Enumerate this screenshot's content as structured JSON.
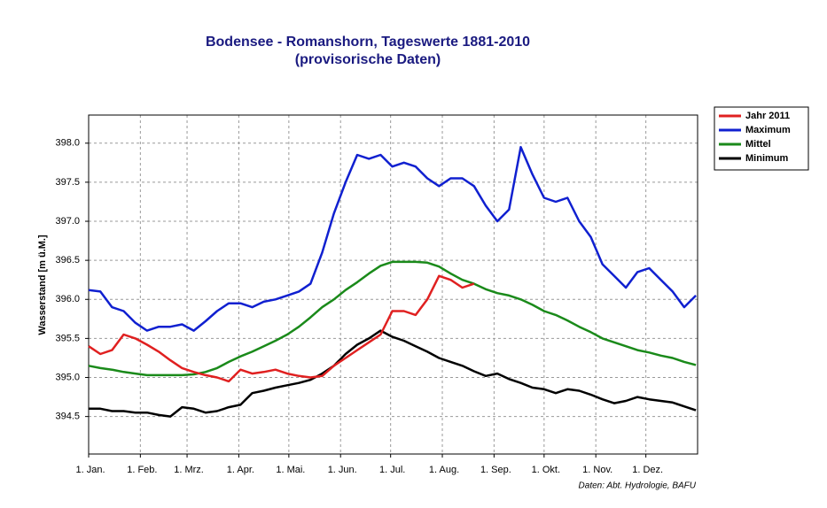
{
  "chart_data": {
    "type": "line",
    "title": "Bodensee - Romanshorn, Tageswerte 1881-2010",
    "subtitle": "(provisorische Daten)",
    "y_label": "Wasserstand [m ü.M.]",
    "source": "Daten: Abt. Hydrologie, BAFU",
    "x": [
      1,
      8,
      15,
      22,
      29,
      36,
      43,
      50,
      57,
      64,
      71,
      78,
      85,
      92,
      99,
      106,
      113,
      120,
      127,
      134,
      141,
      148,
      155,
      162,
      169,
      176,
      183,
      190,
      197,
      204,
      211,
      218,
      225,
      232,
      239,
      246,
      253,
      260,
      267,
      274,
      281,
      288,
      295,
      302,
      309,
      316,
      323,
      330,
      337,
      344,
      351,
      358,
      365
    ],
    "xlim": [
      1,
      366
    ],
    "xticks": [
      {
        "value": 1,
        "label": "1. Jan."
      },
      {
        "value": 32,
        "label": "1. Feb."
      },
      {
        "value": 60,
        "label": "1. Mrz."
      },
      {
        "value": 91,
        "label": "1. Apr."
      },
      {
        "value": 121,
        "label": "1. Mai."
      },
      {
        "value": 152,
        "label": "1. Jun."
      },
      {
        "value": 182,
        "label": "1. Jul."
      },
      {
        "value": 213,
        "label": "1. Aug."
      },
      {
        "value": 244,
        "label": "1. Sep."
      },
      {
        "value": 274,
        "label": "1. Okt."
      },
      {
        "value": 305,
        "label": "1. Nov."
      },
      {
        "value": 335,
        "label": "1. Dez."
      }
    ],
    "ylim": [
      394.02,
      398.36
    ],
    "yticks": [
      394.5,
      {
        "value": 395,
        "label": "395.0"
      },
      395.5,
      {
        "value": 396,
        "label": "396.0"
      },
      396.5,
      {
        "value": 397,
        "label": "397.0"
      },
      397.5,
      {
        "value": 398,
        "label": "398.0"
      }
    ],
    "grid": true,
    "legend": "right",
    "series": [
      {
        "name": "Jahr 2011",
        "color": "#e02020",
        "values": [
          395.4,
          395.3,
          395.35,
          395.55,
          395.5,
          395.42,
          395.33,
          395.22,
          395.12,
          395.07,
          395.03,
          395.0,
          394.95,
          395.1,
          395.05,
          395.07,
          395.1,
          395.05,
          395.02,
          395.0,
          395.02,
          395.15,
          395.25,
          395.35,
          395.45,
          395.55,
          395.85,
          395.85,
          395.8,
          396.0,
          396.3,
          396.25,
          396.15,
          396.2,
          null,
          null,
          null,
          null,
          null,
          null,
          null,
          null,
          null,
          null,
          null,
          null,
          null,
          null,
          null,
          null,
          null,
          null,
          null
        ]
      },
      {
        "name": "Maximum",
        "color": "#1020d0",
        "values": [
          396.12,
          396.1,
          395.9,
          395.85,
          395.7,
          395.6,
          395.65,
          395.65,
          395.68,
          395.6,
          395.72,
          395.85,
          395.95,
          395.95,
          395.9,
          395.97,
          396.0,
          396.05,
          396.1,
          396.2,
          396.6,
          397.1,
          397.5,
          397.85,
          397.8,
          397.85,
          397.7,
          397.75,
          397.7,
          397.55,
          397.45,
          397.55,
          397.55,
          397.45,
          397.2,
          397.0,
          397.15,
          397.95,
          397.6,
          397.3,
          397.25,
          397.3,
          397.0,
          396.8,
          396.45,
          396.3,
          396.15,
          396.35,
          396.4,
          396.25,
          396.1,
          395.9,
          396.05
        ]
      },
      {
        "name": "Mittel",
        "color": "#1a8a1a",
        "values": [
          395.15,
          395.12,
          395.1,
          395.07,
          395.05,
          395.03,
          395.03,
          395.03,
          395.03,
          395.04,
          395.07,
          395.12,
          395.2,
          395.27,
          395.33,
          395.4,
          395.47,
          395.55,
          395.65,
          395.77,
          395.9,
          396.0,
          396.12,
          396.22,
          396.33,
          396.43,
          396.48,
          396.48,
          396.48,
          396.47,
          396.42,
          396.33,
          396.25,
          396.2,
          396.13,
          396.08,
          396.05,
          396.0,
          395.93,
          395.85,
          395.8,
          395.73,
          395.65,
          395.58,
          395.5,
          395.45,
          395.4,
          395.35,
          395.32,
          395.28,
          395.25,
          395.2,
          395.16
        ]
      },
      {
        "name": "Minimum",
        "color": "#000000",
        "values": [
          394.6,
          394.6,
          394.57,
          394.57,
          394.55,
          394.55,
          394.52,
          394.5,
          394.62,
          394.6,
          394.55,
          394.57,
          394.62,
          394.65,
          394.8,
          394.83,
          394.87,
          394.9,
          394.93,
          394.97,
          395.05,
          395.15,
          395.3,
          395.42,
          395.5,
          395.6,
          395.52,
          395.47,
          395.4,
          395.33,
          395.25,
          395.2,
          395.15,
          395.08,
          395.02,
          395.05,
          394.98,
          394.93,
          394.87,
          394.85,
          394.8,
          394.85,
          394.83,
          394.78,
          394.72,
          394.67,
          394.7,
          394.75,
          394.72,
          394.7,
          394.68,
          394.63,
          394.58
        ]
      }
    ]
  }
}
